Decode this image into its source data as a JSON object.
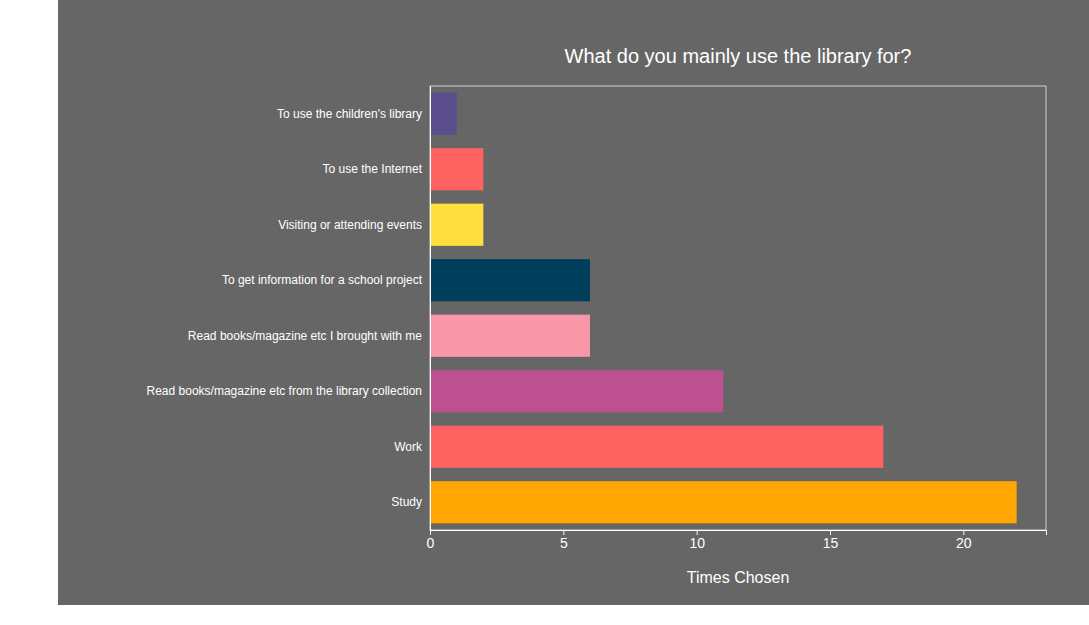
{
  "chart_data": {
    "type": "bar",
    "orientation": "horizontal",
    "title": "What do you mainly use the library for?",
    "xlabel": "Times Chosen",
    "categories": [
      "To use the children's library",
      "To use the Internet",
      "Visiting or attending events",
      "To get information for a school project",
      "Read books/magazine etc I brought with me",
      "Read books/magazine etc from the library collection",
      "Work",
      "Study"
    ],
    "values": [
      1,
      2,
      2,
      6,
      6,
      11,
      17,
      22
    ],
    "colors": [
      "#5b4e8c",
      "#ff6361",
      "#ffe03f",
      "#003f5c",
      "#f797a8",
      "#bc5090",
      "#ff6361",
      "#ffa600"
    ],
    "xlim": [
      0,
      23.1
    ],
    "xticks": [
      0,
      5,
      10,
      15,
      20
    ],
    "grid": false
  }
}
